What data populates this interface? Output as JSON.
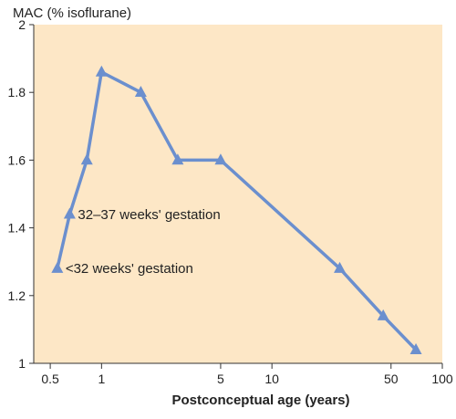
{
  "chart_data": {
    "type": "line",
    "xscale": "log",
    "xlim": [
      0.4,
      100
    ],
    "ylim": [
      1,
      2
    ],
    "ylabel": "MAC (% isoflurane)",
    "xlabel": "Postconceptual age (years)",
    "x_ticks": [
      0.5,
      1,
      5,
      10,
      50,
      100
    ],
    "x_tick_labels": [
      "0.5",
      "1",
      "5",
      "10",
      "50",
      "100"
    ],
    "y_ticks": [
      1,
      1.2,
      1.4,
      1.6,
      1.8,
      2
    ],
    "y_tick_labels": [
      "1",
      "1.2",
      "1.4",
      "1.6",
      "1.8",
      "2"
    ],
    "grid": false,
    "series": [
      {
        "marker": "triangle",
        "x": [
          0.55,
          0.65,
          0.82,
          1.0,
          1.7,
          2.8,
          5.0,
          25,
          45,
          70
        ],
        "y": [
          1.28,
          1.44,
          1.6,
          1.86,
          1.8,
          1.6,
          1.6,
          1.28,
          1.14,
          1.04
        ]
      }
    ],
    "annotations": [
      {
        "text": "32–37 weeks' gestation",
        "x": 0.65,
        "y": 1.44
      },
      {
        "text": "<32 weeks' gestation",
        "x": 0.55,
        "y": 1.28
      }
    ],
    "colors": {
      "plot_background": "#fde7c6",
      "line": "#6b8fce",
      "marker": "#6b8fce"
    }
  }
}
